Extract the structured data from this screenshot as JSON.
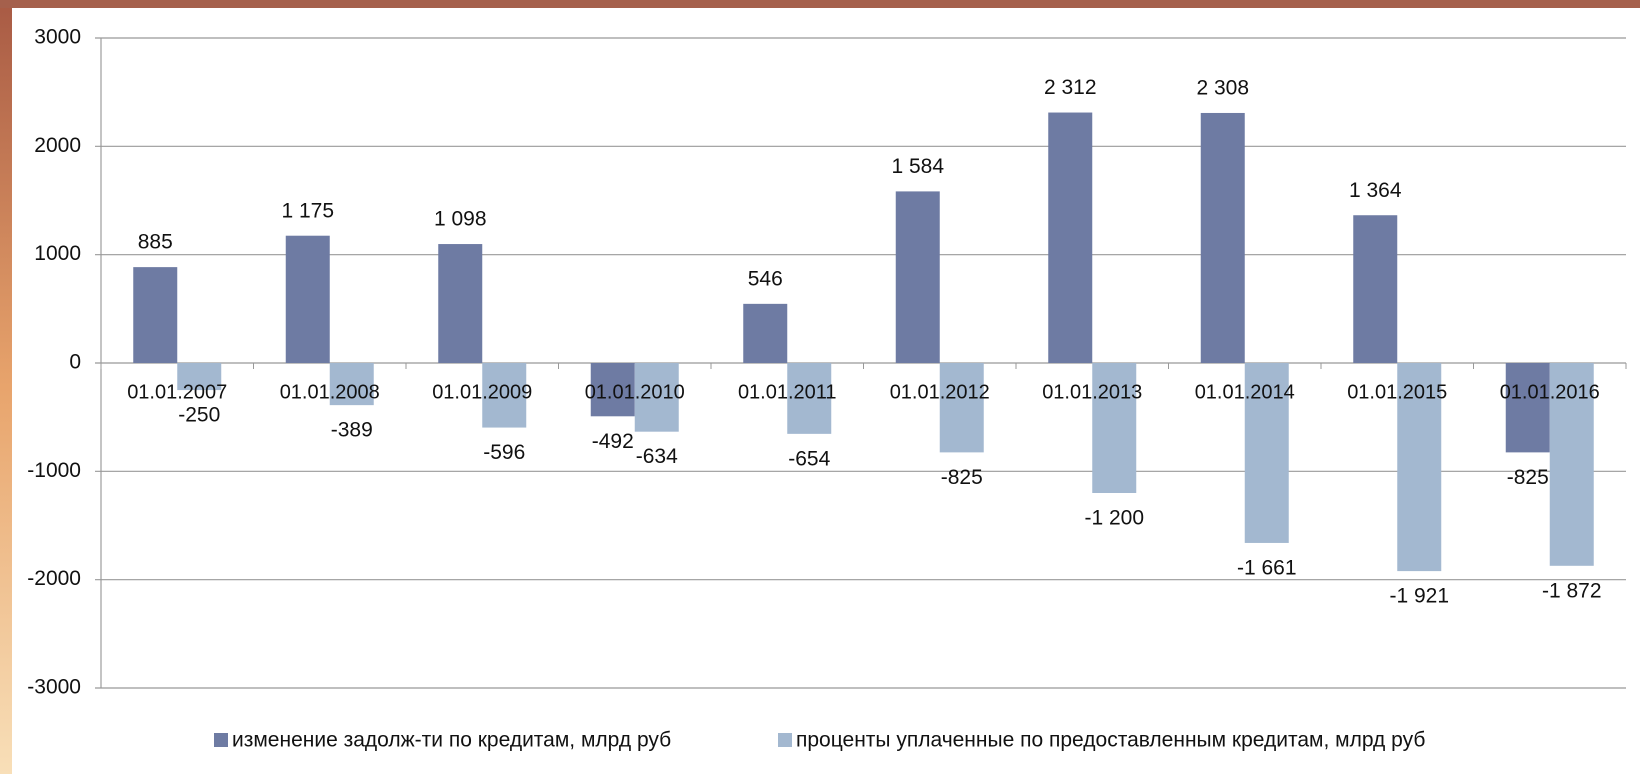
{
  "chart_data": {
    "type": "bar",
    "categories": [
      "01.01.2007",
      "01.01.2008",
      "01.01.2009",
      "01.01.2010",
      "01.01.2011",
      "01.01.2012",
      "01.01.2013",
      "01.01.2014",
      "01.01.2015",
      "01.01.2016"
    ],
    "series": [
      {
        "name": "изменение задолж-ти по кредитам, млрд руб",
        "color": "#6e7ba3",
        "values": [
          885,
          1175,
          1098,
          -492,
          546,
          1584,
          2312,
          2308,
          1364,
          -825
        ],
        "value_labels": [
          "885",
          "1 175",
          "1 098",
          "-492",
          "546",
          "1 584",
          "2 312",
          "2 308",
          "1 364",
          "-825"
        ]
      },
      {
        "name": "проценты уплаченные по предоставленным кредитам, млрд руб",
        "color": "#a3b8d0",
        "values": [
          -250,
          -389,
          -596,
          -634,
          -654,
          -825,
          -1200,
          -1661,
          -1921,
          -1872
        ],
        "value_labels": [
          "-250",
          "-389",
          "-596",
          "-634",
          "-654",
          "-825",
          "-1 200",
          "-1 661",
          "-1 921",
          "-1 872"
        ]
      }
    ],
    "ylim": [
      -3000,
      3000
    ],
    "yticks": [
      -3000,
      -2000,
      -1000,
      0,
      1000,
      2000,
      3000
    ],
    "grid": true
  }
}
